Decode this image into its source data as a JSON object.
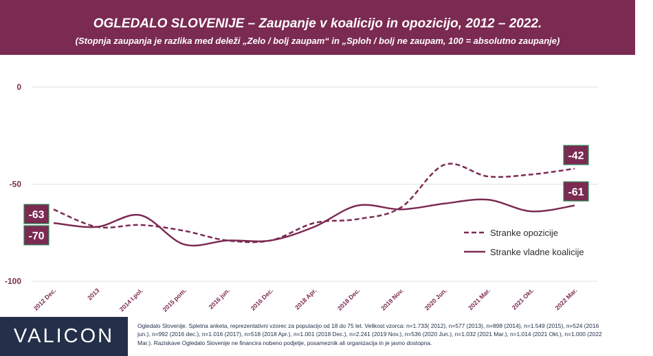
{
  "header": {
    "title": "OGLEDALO SLOVENIJE – Zaupanje v koalicijo in opozicijo, 2012 – 2022.",
    "subtitle": "(Stopnja zaupanja je razlika med deleži „Zelo / bolj zaupam“ in „Sploh / bolj ne zaupam, 100 = absolutno zaupanje)"
  },
  "chart_data": {
    "type": "line",
    "categories": [
      "2012 Dec.",
      "2013",
      "2014 I.pol.",
      "2015 pom.",
      "2016 jun.",
      "2016 Dec.",
      "2018 Apr.",
      "2018 Dec.",
      "2019 Nov.",
      "2020 Jun.",
      "2021 Mar.",
      "2021 Okt.",
      "2022 Mar."
    ],
    "ylim": [
      -100,
      0
    ],
    "yticks": [
      0,
      -50,
      -100
    ],
    "grid": "horizontal",
    "legend_position": "right",
    "series": [
      {
        "name": "Stranke opozicije",
        "style": "dashed",
        "values": [
          -63,
          -72,
          -71,
          -74,
          -79,
          -79,
          -70,
          -68,
          -62,
          -40,
          -46,
          -45,
          -42
        ],
        "end_labels": {
          "start": "-63",
          "end": "-42"
        }
      },
      {
        "name": "Stranke vladne koalicije",
        "style": "solid",
        "values": [
          -70,
          -72,
          -66,
          -81,
          -79,
          -79,
          -72,
          -61,
          -63,
          -60,
          -58,
          -64,
          -61
        ],
        "end_labels": {
          "start": "-70",
          "end": "-61"
        }
      }
    ],
    "colors": {
      "line": "#7b2a52",
      "label_border": "#2e8b57",
      "grid": "#e2e2e2",
      "tick_text": "#7b2a52"
    }
  },
  "footer": {
    "logo": "VALICON",
    "note": "Ogledalo Slovenije. Spletna anketa, reprezentativni vzorec za populacijo od 18 do 75 let. Velikost vzorca: n=1.733( 2012), n=577 (2013), n=898 (2014), n=1.549 (2015), n=524 (2016 jun.), n=992 (2016 dec.), n=1.016 (2017), n=518 (2018 Apr.), n=1.001 (2018 Dec.), n=2.241 (2019 Nov.), n=536 (2020 Jun.), n=1.032 (2021 Mar.), n=1.014 (2021 Okt.), n=1.000 (2022 Mar.). Raziskave Ogledalo Slovenije ne financira nobeno podjetje, posameznik ali organizacija in je javno dostopna."
  }
}
